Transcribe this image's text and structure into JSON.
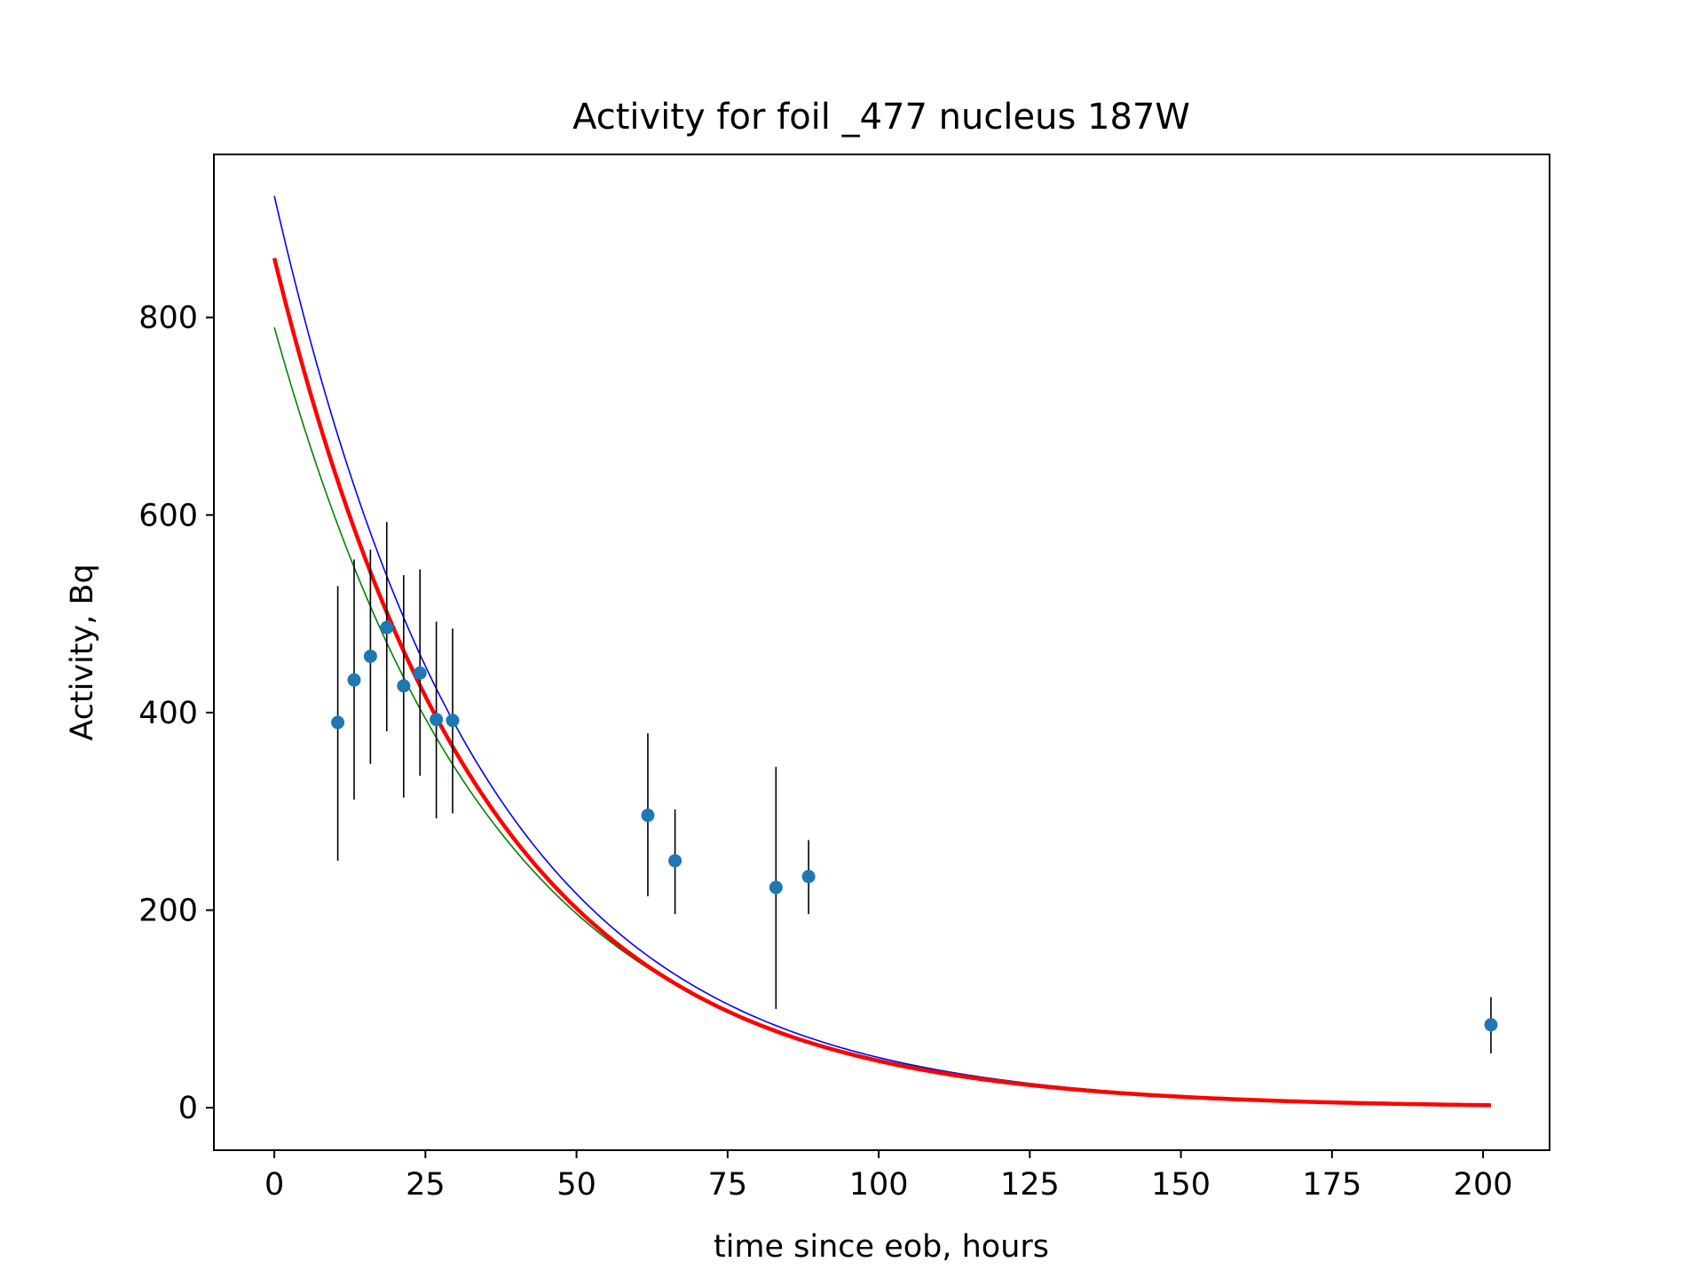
{
  "chart_data": {
    "type": "scatter",
    "title": "Activity for foil _477 nucleus 187W",
    "xlabel": "time since eob, hours",
    "ylabel": "Activity, Bq",
    "xlim": [
      -10,
      211
    ],
    "ylim": [
      -43,
      965
    ],
    "xticks": [
      0,
      25,
      50,
      75,
      100,
      125,
      150,
      175,
      200
    ],
    "yticks": [
      0,
      200,
      400,
      600,
      800
    ],
    "grid": false,
    "measurements": {
      "color": "#1f77b4",
      "errorbar_color": "#000000",
      "points": [
        {
          "x": 10.5,
          "y": 390,
          "ylow": 250,
          "yhigh": 528
        },
        {
          "x": 13.2,
          "y": 433,
          "ylow": 312,
          "yhigh": 555
        },
        {
          "x": 15.9,
          "y": 457,
          "ylow": 348,
          "yhigh": 565
        },
        {
          "x": 18.6,
          "y": 486,
          "ylow": 381,
          "yhigh": 593
        },
        {
          "x": 21.4,
          "y": 427,
          "ylow": 314,
          "yhigh": 539
        },
        {
          "x": 24.1,
          "y": 440,
          "ylow": 336,
          "yhigh": 545
        },
        {
          "x": 26.8,
          "y": 393,
          "ylow": 293,
          "yhigh": 492
        },
        {
          "x": 29.5,
          "y": 392,
          "ylow": 298,
          "yhigh": 485
        },
        {
          "x": 61.8,
          "y": 296,
          "ylow": 214,
          "yhigh": 379
        },
        {
          "x": 66.3,
          "y": 250,
          "ylow": 196,
          "yhigh": 302
        },
        {
          "x": 83.0,
          "y": 223,
          "ylow": 100,
          "yhigh": 345
        },
        {
          "x": 88.4,
          "y": 234,
          "ylow": 196,
          "yhigh": 271
        },
        {
          "x": 201.3,
          "y": 84,
          "ylow": 55,
          "yhigh": 112
        }
      ]
    },
    "fit_curves": [
      {
        "color": "#ff0000",
        "A0": 860,
        "halflife_hours": 23.9,
        "x_range": [
          0,
          201.3
        ]
      },
      {
        "color": "#0000ff",
        "A0": 923,
        "halflife_hours": 23.9,
        "x_range": [
          0,
          201.3
        ]
      },
      {
        "color": "#008000",
        "A0": 790,
        "halflife_hours": 24.9,
        "x_range": [
          0,
          201.3
        ]
      }
    ]
  }
}
